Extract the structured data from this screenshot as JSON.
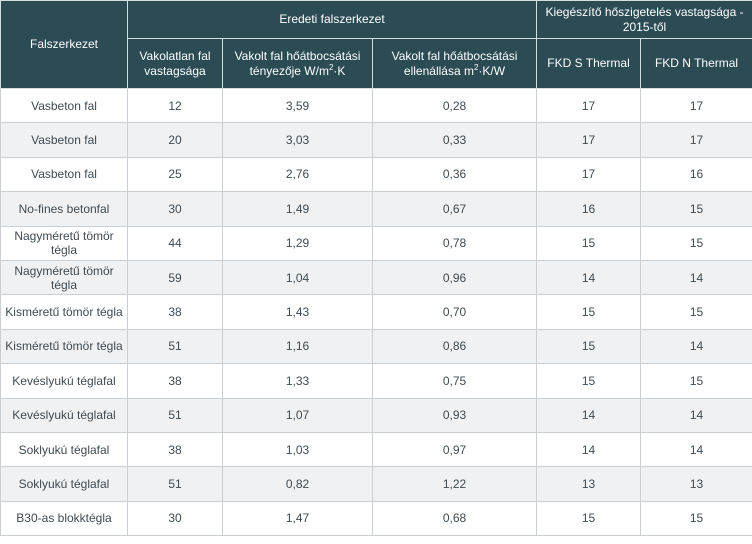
{
  "header": {
    "col_structure": "Falszerkezet",
    "group_original": "Eredeti falszerkezet",
    "group_insulation": "Kiegészítő hőszigetelés vastagsága - 2015-től",
    "col_thickness": "Vakolatlan fal vastagsága",
    "col_u_prefix": "Vakolt fal hőátbocsátási tényezője W/m",
    "col_u_sup": "2",
    "col_u_suffix": "·K",
    "col_r_prefix": "Vakolt fal hőátbocsátási ellenállása m",
    "col_r_sup": "2",
    "col_r_suffix": "·K/W",
    "col_fkd_s": "FKD S Thermal",
    "col_fkd_n": "FKD N Thermal"
  },
  "rows": [
    {
      "name": "Vasbeton fal",
      "thickness": "12",
      "u": "3,59",
      "r": "0,28",
      "s": "17",
      "n": "17"
    },
    {
      "name": "Vasbeton fal",
      "thickness": "20",
      "u": "3,03",
      "r": "0,33",
      "s": "17",
      "n": "17"
    },
    {
      "name": "Vasbeton fal",
      "thickness": "25",
      "u": "2,76",
      "r": "0,36",
      "s": "17",
      "n": "16"
    },
    {
      "name": "No-fines betonfal",
      "thickness": "30",
      "u": "1,49",
      "r": "0,67",
      "s": "16",
      "n": "15"
    },
    {
      "name": "Nagyméretű tömör tégla",
      "thickness": "44",
      "u": "1,29",
      "r": "0,78",
      "s": "15",
      "n": "15"
    },
    {
      "name": "Nagyméretű tömör tégla",
      "thickness": "59",
      "u": "1,04",
      "r": "0,96",
      "s": "14",
      "n": "14"
    },
    {
      "name": "Kisméretű tömör tégla",
      "thickness": "38",
      "u": "1,43",
      "r": "0,70",
      "s": "15",
      "n": "15"
    },
    {
      "name": "Kisméretű tömör tégla",
      "thickness": "51",
      "u": "1,16",
      "r": "0,86",
      "s": "15",
      "n": "14"
    },
    {
      "name": "Kevéslyukú téglafal",
      "thickness": "38",
      "u": "1,33",
      "r": "0,75",
      "s": "15",
      "n": "15"
    },
    {
      "name": "Kevéslyukú téglafal",
      "thickness": "51",
      "u": "1,07",
      "r": "0,93",
      "s": "14",
      "n": "14"
    },
    {
      "name": "Soklyukú téglafal",
      "thickness": "38",
      "u": "1,03",
      "r": "0,97",
      "s": "14",
      "n": "14"
    },
    {
      "name": "Soklyukú téglafal",
      "thickness": "51",
      "u": "0,82",
      "r": "1,22",
      "s": "13",
      "n": "13"
    },
    {
      "name": "B30-as blokktégla",
      "thickness": "30",
      "u": "1,47",
      "r": "0,68",
      "s": "15",
      "n": "15"
    }
  ]
}
